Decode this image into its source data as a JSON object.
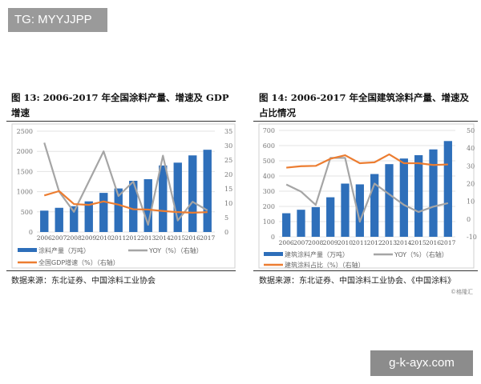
{
  "overlay": {
    "tg_label": "TG: MYYJJPP",
    "watermark": "g-k-ayx.com",
    "credit": "©格隆汇"
  },
  "colors": {
    "bar": "#2e6fba",
    "yoy": "#a5a5a5",
    "line": "#ec7d31"
  },
  "chart_data": [
    {
      "type": "bar+line",
      "title": "图 13:  2006-2017 年全国涂料产量、增速及 GDP 增速",
      "source": "数据来源：东北证券、中国涂料工业协会",
      "categories": [
        "2006",
        "2007",
        "2008",
        "2009",
        "2010",
        "2011",
        "2012",
        "2013",
        "2014",
        "2015",
        "2016",
        "2017"
      ],
      "left_axis": {
        "ylim": [
          0,
          2500
        ],
        "ticks": [
          "0",
          "500",
          "1000",
          "1500",
          "2000",
          "2500"
        ]
      },
      "right_axis": {
        "ylim": [
          0,
          35
        ],
        "ticks": [
          "0",
          "5",
          "10",
          "15",
          "20",
          "25",
          "30",
          "35"
        ]
      },
      "series": [
        {
          "name": "涂料产量（万吨）",
          "type": "bar",
          "axis": "left",
          "values": [
            530,
            600,
            640,
            760,
            970,
            1080,
            1270,
            1310,
            1650,
            1720,
            1900,
            2040
          ]
        },
        {
          "name": "YOY（%）（右轴）",
          "type": "line",
          "axis": "right",
          "color": "#a5a5a5",
          "values": [
            31,
            14,
            7,
            17.5,
            28,
            12.5,
            17.5,
            2.5,
            26.5,
            4,
            10.5,
            7.5
          ]
        },
        {
          "name": "全国GDP增速（%）（右轴）",
          "type": "line",
          "axis": "right",
          "color": "#ec7d31",
          "values": [
            12.7,
            14.2,
            9.7,
            9.4,
            10.6,
            9.5,
            7.9,
            7.8,
            7.3,
            6.9,
            6.7,
            6.9
          ]
        }
      ],
      "grid": true,
      "legend": "bottom"
    },
    {
      "type": "bar+line",
      "title": "图 14:  2006-2017 年全国建筑涂料产量、增速及占比情况",
      "source": "数据来源：东北证券、中国涂料工业协会、《中国涂料》",
      "categories": [
        "2006",
        "2007",
        "2008",
        "2009",
        "2010",
        "2011",
        "2012",
        "2013",
        "2014",
        "2015",
        "2016",
        "2017"
      ],
      "left_axis": {
        "ylim": [
          0,
          700
        ],
        "ticks": [
          "0",
          "100",
          "200",
          "300",
          "400",
          "500",
          "600",
          "700"
        ]
      },
      "right_axis": {
        "ylim": [
          -10,
          50
        ],
        "ticks": [
          "-10",
          "0",
          "10",
          "20",
          "30",
          "40",
          "50"
        ]
      },
      "series": [
        {
          "name": "建筑涂料产量（万吨）",
          "type": "bar",
          "axis": "left",
          "values": [
            155,
            178,
            195,
            260,
            350,
            345,
            413,
            478,
            515,
            537,
            575,
            630
          ]
        },
        {
          "name": "YOY（%）（右轴）",
          "type": "line",
          "axis": "right",
          "color": "#a5a5a5",
          "values": [
            19.5,
            15.5,
            8,
            34.5,
            34.5,
            -1.5,
            20,
            14,
            8,
            4,
            7,
            9
          ]
        },
        {
          "name": "建筑涂料占比（%）（右轴）",
          "type": "line",
          "axis": "right",
          "color": "#ec7d31",
          "values": [
            29,
            29.8,
            30,
            34,
            36,
            31.5,
            32,
            36.5,
            31.5,
            31.5,
            30.5,
            30.8
          ]
        }
      ],
      "grid": true,
      "legend": "bottom"
    }
  ]
}
